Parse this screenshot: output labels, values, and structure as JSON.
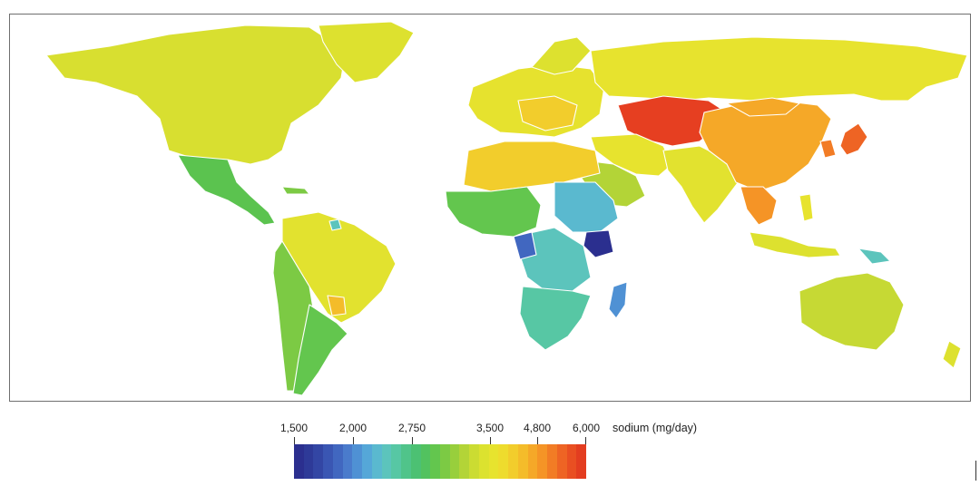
{
  "legend": {
    "title": "sodium (mg/day)",
    "ticks": [
      "1,500",
      "2,000",
      "2,750",
      "3,500",
      "4,800",
      "6,000"
    ],
    "colors": [
      "#2b2f8f",
      "#2e3a98",
      "#3346a4",
      "#3a56b3",
      "#4167c0",
      "#4a7bcc",
      "#4f91d4",
      "#55a7d8",
      "#5ab9cf",
      "#5cc4bc",
      "#57c7a4",
      "#50c48a",
      "#4cc173",
      "#52c25f",
      "#63c64e",
      "#7cca44",
      "#98cf3c",
      "#b3d437",
      "#cbdc32",
      "#dce22f",
      "#e7e32e",
      "#eedc2d",
      "#f2cd2c",
      "#f4bc2a",
      "#f5a828",
      "#f59426",
      "#f27c25",
      "#ee6424",
      "#e94f22",
      "#e33d20"
    ]
  },
  "regions": [
    {
      "name": "North America",
      "sodium_band": "2,750–3,500"
    },
    {
      "name": "Mexico & Central America",
      "sodium_band": "2,750"
    },
    {
      "name": "South America",
      "sodium_band": "2,750–3,500"
    },
    {
      "name": "Europe",
      "sodium_band": "3,500–4,800"
    },
    {
      "name": "Central Asia",
      "sodium_band": "≈6,000"
    },
    {
      "name": "China",
      "sodium_band": "4,800"
    },
    {
      "name": "Japan",
      "sodium_band": "≈6,000"
    },
    {
      "name": "South Asia",
      "sodium_band": "3,500"
    },
    {
      "name": "Southeast Asia",
      "sodium_band": "4,800"
    },
    {
      "name": "North Africa",
      "sodium_band": "4,800"
    },
    {
      "name": "Sub-Saharan Africa",
      "sodium_band": "1,500–2,750"
    },
    {
      "name": "Australia",
      "sodium_band": "3,500"
    }
  ]
}
